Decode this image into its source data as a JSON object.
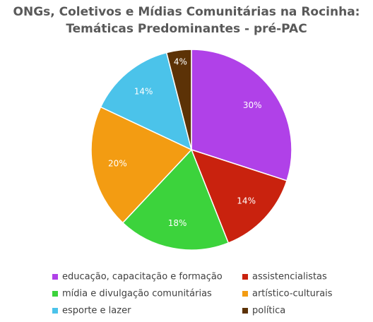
{
  "chart_data": {
    "type": "pie",
    "title": [
      "ONGs, Coletivos e Mídias Comunitárias na Rocinha:",
      "Temáticas Predominantes -  pré-PAC"
    ],
    "categories": [
      "educação, capacitação e formação",
      "assistencialistas",
      "mídia e divulgação comunitárias",
      "artístico-culturais",
      "esporte e lazer",
      "política"
    ],
    "values": [
      30,
      14,
      18,
      20,
      14,
      4
    ],
    "value_labels": [
      "30%",
      "14%",
      "18%",
      "20%",
      "14%",
      "4%"
    ],
    "colors": [
      "#b041e8",
      "#c9220e",
      "#3cd33c",
      "#f39c12",
      "#4bc3ea",
      "#5c3206"
    ],
    "legend": "bottom"
  }
}
